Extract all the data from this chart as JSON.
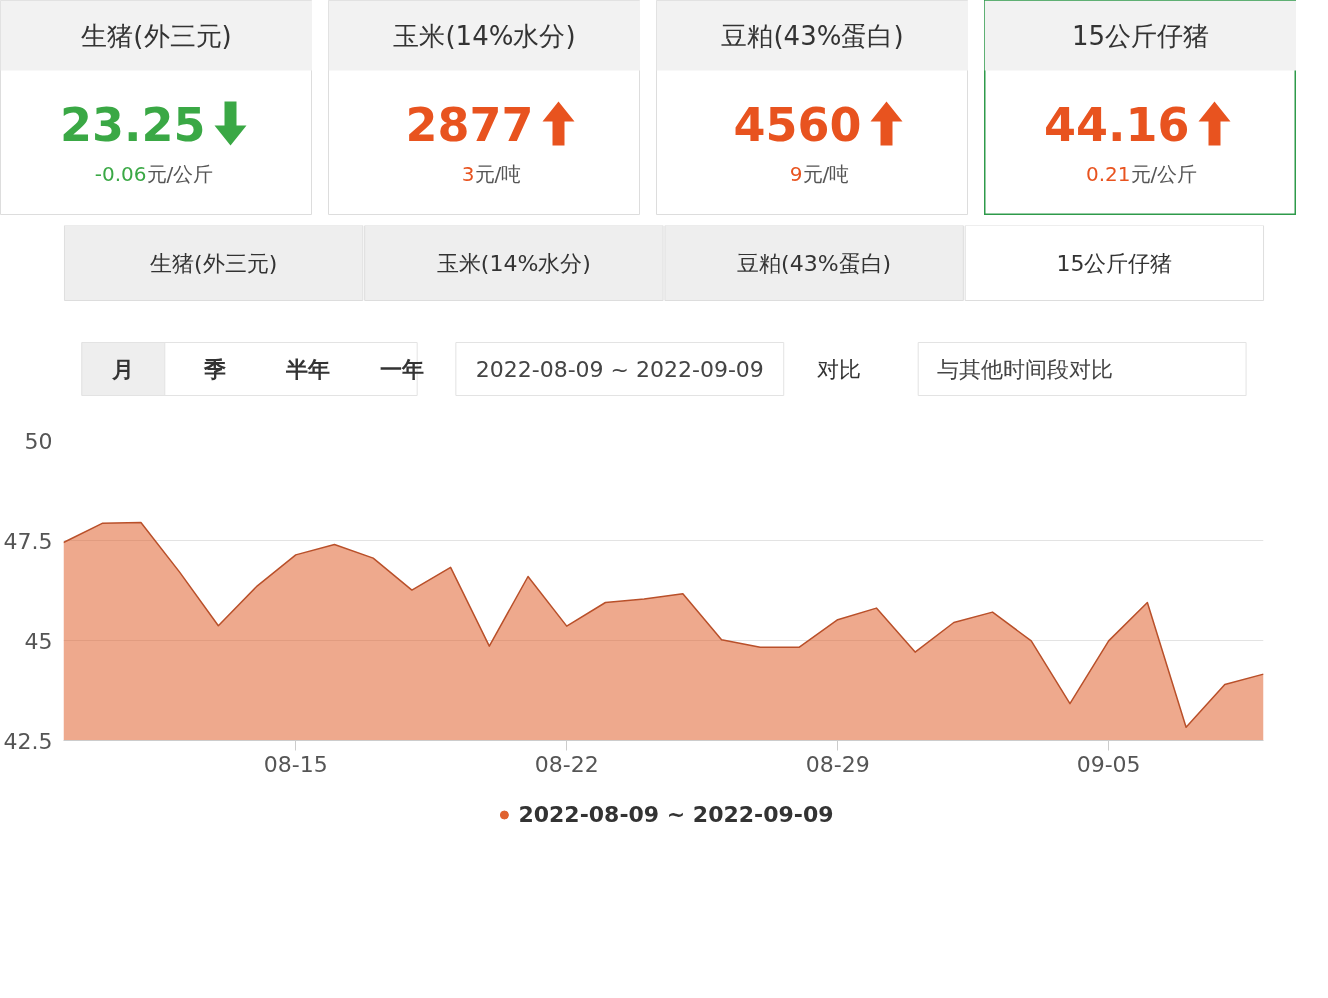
{
  "chart_data": [
    {
      "type": "other",
      "title": "生猪(外三元)",
      "values": [
        23.25,
        -0.06
      ],
      "data_labels": true,
      "annotations": [
        "元/公斤"
      ],
      "color": "#3aa845"
    },
    {
      "type": "other",
      "title": "玉米(14%水分)",
      "values": [
        2877,
        3
      ],
      "data_labels": true,
      "annotations": [
        "元/吨"
      ],
      "color": "#e8531f"
    },
    {
      "type": "other",
      "title": "豆粕(43%蛋白)",
      "values": [
        4560,
        9
      ],
      "data_labels": true,
      "annotations": [
        "元/吨"
      ],
      "color": "#e8531f"
    },
    {
      "type": "other",
      "title": "15公斤仔猪",
      "values": [
        44.16,
        0.21
      ],
      "data_labels": true,
      "annotations": [
        "元/公斤"
      ],
      "color": "#e8531f"
    },
    {
      "type": "other",
      "annotations": [
        "生猪(外三元)",
        "玉米(14%水分)",
        "豆粕(43%蛋白)",
        "15公斤仔猪",
        "月",
        "季",
        "半年",
        "一年",
        "2022-08-09 ~ 2022-09-09",
        "对比",
        "与其他时间段对比"
      ]
    },
    {
      "type": "area",
      "x": [
        "2022-08-09",
        "2022-08-10",
        "2022-08-11",
        "2022-08-12",
        "2022-08-13",
        "2022-08-14",
        "2022-08-15",
        "2022-08-16",
        "2022-08-17",
        "2022-08-18",
        "2022-08-19",
        "2022-08-20",
        "2022-08-21",
        "2022-08-22",
        "2022-08-23",
        "2022-08-24",
        "2022-08-25",
        "2022-08-26",
        "2022-08-27",
        "2022-08-28",
        "2022-08-29",
        "2022-08-30",
        "2022-08-31",
        "2022-09-01",
        "2022-09-02",
        "2022-09-03",
        "2022-09-04",
        "2022-09-05",
        "2022-09-06",
        "2022-09-07",
        "2022-09-08",
        "2022-09-09"
      ],
      "series": [
        {
          "name": "2022-08-09 ~ 2022-09-09",
          "color": "#e0622f",
          "values": [
            47.45,
            47.93,
            47.95,
            46.71,
            45.37,
            46.36,
            47.14,
            47.4,
            47.06,
            46.26,
            46.83,
            44.86,
            46.6,
            45.36,
            45.95,
            46.04,
            46.17,
            45.02,
            44.83,
            44.83,
            45.52,
            45.81,
            44.71,
            45.45,
            45.71,
            44.99,
            43.42,
            44.99,
            45.95,
            42.83,
            43.9,
            44.16
          ]
        }
      ],
      "xlim": [
        "2022-08-09",
        "2022-09-09"
      ],
      "xticks": [
        {
          "value": "2022-08-15",
          "label": "08-15"
        },
        {
          "value": "2022-08-22",
          "label": "08-22"
        },
        {
          "value": "2022-08-29",
          "label": "08-29"
        },
        {
          "value": "2022-09-05",
          "label": "09-05"
        }
      ],
      "ylim": [
        42.5,
        50
      ],
      "yticks": [
        50,
        47.5,
        45,
        42.5
      ],
      "grid": "y",
      "legend": "bottom"
    }
  ]
}
